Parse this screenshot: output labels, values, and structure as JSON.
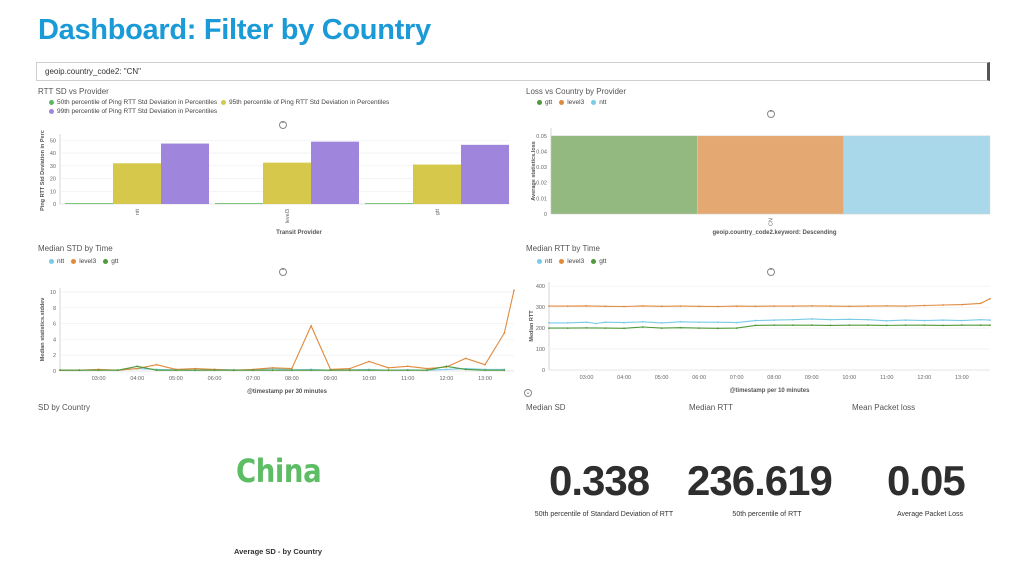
{
  "slide": {
    "title": "Dashboard: Filter by Country"
  },
  "query": {
    "text": "geoip.country_code2: \"CN\""
  },
  "colors": {
    "green": "#5cb85c",
    "gold": "#d6c84a",
    "purple": "#9f86dc",
    "gtt": "#4f9a3a",
    "level3": "#e08a3c",
    "ntt": "#79cbe8",
    "title_blue": "#1a9ad6",
    "china_green": "#5cbd64"
  },
  "panels": {
    "rtt_sd": {
      "title": "RTT SD vs Provider",
      "legend": [
        "50th percentile of Ping RTT Std Deviation in Percentiles",
        "95th percentile of Ping RTT Std Deviation in Percentiles",
        "99th percentile of Ping RTT Std Deviation in Percentiles"
      ],
      "toggle_icon": "chevron-circle-icon"
    },
    "loss": {
      "title": "Loss vs Country by Provider",
      "legend": [
        "gtt",
        "level3",
        "ntt"
      ],
      "toggle_icon": "chevron-circle-icon"
    },
    "median_std": {
      "title": "Median STD by Time",
      "legend": [
        "ntt",
        "level3",
        "gtt"
      ],
      "toggle_icon": "chevron-circle-icon"
    },
    "median_rtt": {
      "title": "Median RTT by Time",
      "legend": [
        "ntt",
        "level3",
        "gtt"
      ],
      "toggle_icon": "chevron-circle-icon"
    },
    "sd_country": {
      "title": "SD by Country",
      "country": "China",
      "caption": "Average SD - by Country"
    },
    "metrics": [
      {
        "title": "Median SD",
        "value": "0.338",
        "caption": "50th percentile of Standard Deviation of RTT"
      },
      {
        "title": "Median RTT",
        "value": "236.619",
        "caption": "50th percentile of RTT"
      },
      {
        "title": "Mean Packet loss",
        "value": "0.05",
        "caption": "Average Packet Loss"
      }
    ]
  },
  "chart_data": [
    {
      "type": "bar",
      "title": "RTT SD vs Provider",
      "xlabel": "Transit Provider",
      "ylabel": "Ping RTT Std Deviation in Perce",
      "categories": [
        "ntt",
        "level3",
        "gtt"
      ],
      "ylim": [
        0,
        55
      ],
      "yticks": [
        0,
        10,
        20,
        30,
        40,
        50
      ],
      "series": [
        {
          "name": "50th percentile of Ping RTT Std Deviation in Percentiles",
          "color": "#5cb85c",
          "values": [
            0.3,
            0.3,
            0.3
          ]
        },
        {
          "name": "95th percentile of Ping RTT Std Deviation in Percentiles",
          "color": "#d6c84a",
          "values": [
            32,
            32.5,
            31
          ]
        },
        {
          "name": "99th percentile of Ping RTT Std Deviation in Percentiles",
          "color": "#9f86dc",
          "values": [
            47.5,
            49,
            46.5
          ]
        }
      ]
    },
    {
      "type": "bar",
      "stacked_horizontal": true,
      "title": "Loss vs Country by Provider",
      "xlabel": "geoip.country_code2.keyword: Descending",
      "ylabel": "Average statistics.loss",
      "categories": [
        "CN"
      ],
      "ylim": [
        0,
        0.055
      ],
      "yticks": [
        0,
        0.01,
        0.02,
        0.03,
        0.04,
        0.05
      ],
      "series": [
        {
          "name": "gtt",
          "color": "#93b980",
          "values": [
            0.05
          ]
        },
        {
          "name": "level3",
          "color": "#e4a873",
          "values": [
            0.05
          ]
        },
        {
          "name": "ntt",
          "color": "#a9d8ea",
          "values": [
            0.05
          ]
        }
      ]
    },
    {
      "type": "line",
      "title": "Median STD by Time",
      "xlabel": "@timestamp per 30 minutes",
      "ylabel": "Median statistics.stddev",
      "xticks": [
        "03:00",
        "04:00",
        "05:00",
        "06:00",
        "07:00",
        "08:00",
        "09:00",
        "10:00",
        "11:00",
        "12:00",
        "13:00"
      ],
      "xrange": [
        2.0,
        13.75
      ],
      "ylim": [
        0,
        10.5
      ],
      "yticks": [
        0,
        2,
        4,
        6,
        8,
        10
      ],
      "series": [
        {
          "name": "ntt",
          "color": "#79cbe8",
          "x": [
            2.0,
            2.5,
            3.0,
            3.5,
            4.0,
            4.5,
            5.0,
            5.5,
            6.0,
            6.5,
            7.0,
            7.5,
            8.0,
            8.5,
            9.0,
            9.5,
            10.0,
            10.5,
            11.0,
            11.5,
            12.0,
            12.5,
            13.0,
            13.5
          ],
          "y": [
            0.1,
            0.1,
            0.15,
            0.1,
            0.3,
            0.2,
            0.15,
            0.1,
            0.2,
            0.15,
            0.1,
            0.3,
            0.15,
            0.2,
            0.1,
            0.15,
            0.2,
            0.1,
            0.15,
            0.1,
            0.2,
            0.3,
            0.2,
            0.2
          ]
        },
        {
          "name": "level3",
          "color": "#e08a3c",
          "x": [
            2.0,
            2.5,
            3.0,
            3.5,
            4.0,
            4.5,
            5.0,
            5.5,
            6.0,
            6.5,
            7.0,
            7.5,
            8.0,
            8.5,
            9.0,
            9.5,
            10.0,
            10.5,
            11.0,
            11.5,
            12.0,
            12.5,
            13.0,
            13.5,
            13.75
          ],
          "y": [
            0.1,
            0.1,
            0.2,
            0.1,
            0.3,
            0.8,
            0.2,
            0.3,
            0.2,
            0.1,
            0.2,
            0.4,
            0.3,
            5.7,
            0.2,
            0.3,
            1.2,
            0.4,
            0.6,
            0.3,
            0.5,
            1.6,
            0.8,
            4.8,
            10.2
          ]
        },
        {
          "name": "gtt",
          "color": "#4f9a3a",
          "x": [
            2.0,
            2.5,
            3.0,
            3.5,
            4.0,
            4.5,
            5.0,
            5.5,
            6.0,
            6.5,
            7.0,
            7.5,
            8.0,
            8.5,
            9.0,
            9.5,
            10.0,
            10.5,
            11.0,
            11.5,
            12.0,
            12.5,
            13.0,
            13.5
          ],
          "y": [
            0.1,
            0.1,
            0.1,
            0.1,
            0.6,
            0.1,
            0.1,
            0.1,
            0.1,
            0.1,
            0.1,
            0.1,
            0.1,
            0.1,
            0.1,
            0.1,
            0.1,
            0.1,
            0.1,
            0.1,
            0.6,
            0.2,
            0.1,
            0.1
          ]
        }
      ]
    },
    {
      "type": "line",
      "title": "Median RTT by Time",
      "xlabel": "@timestamp per 10 minutes",
      "ylabel": "Median RTT",
      "xticks": [
        "03:00",
        "04:00",
        "05:00",
        "06:00",
        "07:00",
        "08:00",
        "09:00",
        "10:00",
        "11:00",
        "12:00",
        "13:00"
      ],
      "xrange": [
        2.0,
        13.75
      ],
      "ylim": [
        0,
        420
      ],
      "yticks": [
        0,
        100,
        200,
        300,
        400
      ],
      "series": [
        {
          "name": "ntt",
          "color": "#79cbe8",
          "x": [
            2.0,
            2.5,
            3.0,
            3.25,
            3.5,
            4.0,
            4.5,
            5.0,
            5.5,
            6.0,
            6.5,
            7.0,
            7.5,
            8.0,
            8.5,
            9.0,
            9.5,
            10.0,
            10.5,
            11.0,
            11.5,
            12.0,
            12.5,
            13.0,
            13.5,
            13.75
          ],
          "y": [
            225,
            225,
            228,
            222,
            228,
            226,
            230,
            225,
            230,
            228,
            228,
            226,
            236,
            238,
            240,
            244,
            240,
            242,
            240,
            235,
            238,
            236,
            238,
            236,
            240,
            238
          ]
        },
        {
          "name": "level3",
          "color": "#e08a3c",
          "x": [
            2.0,
            2.5,
            3.0,
            3.5,
            4.0,
            4.5,
            5.0,
            5.5,
            6.0,
            6.5,
            7.0,
            7.5,
            8.0,
            8.5,
            9.0,
            9.5,
            10.0,
            10.5,
            11.0,
            11.5,
            12.0,
            12.5,
            13.0,
            13.5,
            13.75
          ],
          "y": [
            305,
            305,
            306,
            304,
            303,
            306,
            304,
            305,
            304,
            303,
            305,
            304,
            305,
            305,
            306,
            305,
            304,
            305,
            306,
            305,
            308,
            310,
            312,
            318,
            340
          ]
        },
        {
          "name": "gtt",
          "color": "#4f9a3a",
          "x": [
            2.0,
            2.5,
            3.0,
            3.5,
            4.0,
            4.5,
            5.0,
            5.5,
            6.0,
            6.5,
            7.0,
            7.5,
            8.0,
            8.5,
            9.0,
            9.5,
            10.0,
            10.5,
            11.0,
            11.5,
            12.0,
            12.5,
            13.0,
            13.5,
            13.75
          ],
          "y": [
            200,
            200,
            201,
            200,
            199,
            205,
            200,
            202,
            200,
            199,
            200,
            213,
            214,
            214,
            214,
            213,
            214,
            214,
            213,
            214,
            214,
            213,
            214,
            214,
            214
          ]
        }
      ]
    }
  ]
}
